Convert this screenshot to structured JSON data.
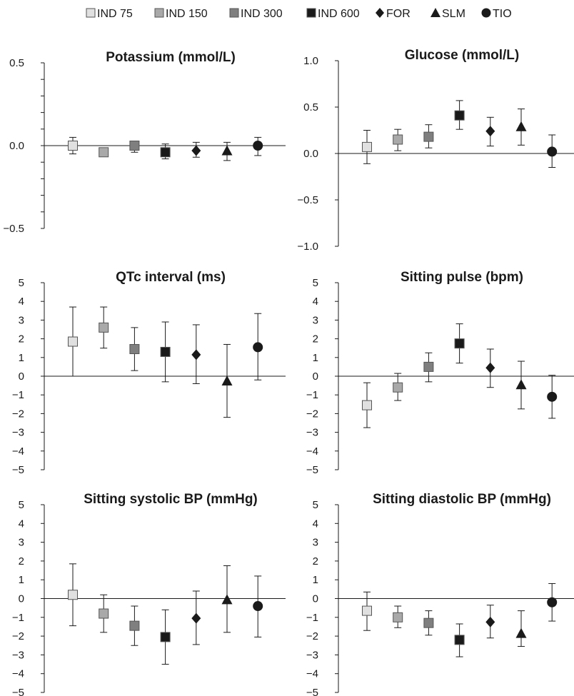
{
  "legend": [
    {
      "label": "IND 75",
      "marker": "square",
      "color": "#e0e0e0"
    },
    {
      "label": "IND 150",
      "marker": "square",
      "color": "#a9a9a9"
    },
    {
      "label": "IND 300",
      "marker": "square",
      "color": "#7f7f7f"
    },
    {
      "label": "IND 600",
      "marker": "square",
      "color": "#1a1a1a"
    },
    {
      "label": "FOR",
      "marker": "diamond",
      "color": "#1a1a1a"
    },
    {
      "label": "SLM",
      "marker": "triangle",
      "color": "#1a1a1a"
    },
    {
      "label": "TIO",
      "marker": "circle",
      "color": "#1a1a1a"
    }
  ],
  "chart_data": [
    {
      "type": "scatter",
      "title": "Potassium (mmol/L)",
      "ylim": [
        -0.5,
        0.5
      ],
      "yticks": [
        -0.5,
        0.0,
        0.5
      ],
      "ytick_labels": [
        "−0.5",
        "0.0",
        "0.5"
      ],
      "minor_step": 0.1,
      "series": [
        {
          "name": "IND 75",
          "value": 0.0,
          "ci": [
            -0.05,
            0.05
          ]
        },
        {
          "name": "IND 150",
          "value": -0.04,
          "ci": [
            -0.06,
            -0.02
          ]
        },
        {
          "name": "IND 300",
          "value": 0.0,
          "ci": [
            -0.04,
            0.02
          ]
        },
        {
          "name": "IND 600",
          "value": -0.04,
          "ci": [
            -0.08,
            0.01
          ]
        },
        {
          "name": "FOR",
          "value": -0.03,
          "ci": [
            -0.07,
            0.02
          ]
        },
        {
          "name": "SLM",
          "value": -0.03,
          "ci": [
            -0.09,
            0.02
          ]
        },
        {
          "name": "TIO",
          "value": 0.0,
          "ci": [
            -0.06,
            0.05
          ]
        }
      ]
    },
    {
      "type": "scatter",
      "title": "Glucose (mmol/L)",
      "ylim": [
        -1.0,
        1.0
      ],
      "yticks": [
        -1.0,
        -0.5,
        0.0,
        0.5,
        1.0
      ],
      "ytick_labels": [
        "−1.0",
        "−0.5",
        "0.0",
        "0.5",
        "1.0"
      ],
      "minor_step": 0.5,
      "series": [
        {
          "name": "IND 75",
          "value": 0.07,
          "ci": [
            -0.11,
            0.25
          ]
        },
        {
          "name": "IND 150",
          "value": 0.15,
          "ci": [
            0.03,
            0.26
          ]
        },
        {
          "name": "IND 300",
          "value": 0.18,
          "ci": [
            0.06,
            0.31
          ]
        },
        {
          "name": "IND 600",
          "value": 0.41,
          "ci": [
            0.26,
            0.57
          ]
        },
        {
          "name": "FOR",
          "value": 0.24,
          "ci": [
            0.08,
            0.39
          ]
        },
        {
          "name": "SLM",
          "value": 0.29,
          "ci": [
            0.09,
            0.48
          ]
        },
        {
          "name": "TIO",
          "value": 0.02,
          "ci": [
            -0.15,
            0.2
          ]
        }
      ]
    },
    {
      "type": "scatter",
      "title": "QTc interval (ms)",
      "ylim": [
        -5,
        5
      ],
      "yticks": [
        -5,
        -4,
        -3,
        -2,
        -1,
        0,
        1,
        2,
        3,
        4,
        5
      ],
      "ytick_labels": [
        "−5",
        "−4",
        "−3",
        "−2",
        "−1",
        "0",
        "1",
        "2",
        "3",
        "4",
        "5"
      ],
      "minor_step": 1,
      "series": [
        {
          "name": "IND 75",
          "value": 1.85,
          "ci": [
            0.0,
            3.7
          ]
        },
        {
          "name": "IND 150",
          "value": 2.6,
          "ci": [
            1.5,
            3.7
          ]
        },
        {
          "name": "IND 300",
          "value": 1.45,
          "ci": [
            0.3,
            2.6
          ]
        },
        {
          "name": "IND 600",
          "value": 1.3,
          "ci": [
            -0.3,
            2.9
          ]
        },
        {
          "name": "FOR",
          "value": 1.15,
          "ci": [
            -0.4,
            2.75
          ]
        },
        {
          "name": "SLM",
          "value": -0.25,
          "ci": [
            -2.2,
            1.7
          ]
        },
        {
          "name": "TIO",
          "value": 1.55,
          "ci": [
            -0.2,
            3.35
          ]
        }
      ]
    },
    {
      "type": "scatter",
      "title": "Sitting pulse (bpm)",
      "ylim": [
        -5,
        5
      ],
      "yticks": [
        -5,
        -4,
        -3,
        -2,
        -1,
        0,
        1,
        2,
        3,
        4,
        5
      ],
      "ytick_labels": [
        "−5",
        "−4",
        "−3",
        "−2",
        "−1",
        "0",
        "1",
        "2",
        "3",
        "4",
        "5"
      ],
      "minor_step": 1,
      "series": [
        {
          "name": "IND 75",
          "value": -1.55,
          "ci": [
            -2.75,
            -0.35
          ]
        },
        {
          "name": "IND 150",
          "value": -0.6,
          "ci": [
            -1.3,
            0.15
          ]
        },
        {
          "name": "IND 300",
          "value": 0.5,
          "ci": [
            -0.3,
            1.25
          ]
        },
        {
          "name": "IND 600",
          "value": 1.75,
          "ci": [
            0.7,
            2.8
          ]
        },
        {
          "name": "FOR",
          "value": 0.45,
          "ci": [
            -0.6,
            1.45
          ]
        },
        {
          "name": "SLM",
          "value": -0.45,
          "ci": [
            -1.75,
            0.8
          ]
        },
        {
          "name": "TIO",
          "value": -1.1,
          "ci": [
            -2.25,
            0.05
          ]
        }
      ]
    },
    {
      "type": "scatter",
      "title": "Sitting systolic BP (mmHg)",
      "ylim": [
        -5,
        5
      ],
      "yticks": [
        -5,
        -4,
        -3,
        -2,
        -1,
        0,
        1,
        2,
        3,
        4,
        5
      ],
      "ytick_labels": [
        "−5",
        "−4",
        "−3",
        "−2",
        "−1",
        "0",
        "1",
        "2",
        "3",
        "4",
        "5"
      ],
      "minor_step": 1,
      "series": [
        {
          "name": "IND 75",
          "value": 0.2,
          "ci": [
            -1.45,
            1.85
          ]
        },
        {
          "name": "IND 150",
          "value": -0.8,
          "ci": [
            -1.8,
            0.2
          ]
        },
        {
          "name": "IND 300",
          "value": -1.45,
          "ci": [
            -2.5,
            -0.4
          ]
        },
        {
          "name": "IND 600",
          "value": -2.05,
          "ci": [
            -3.5,
            -0.6
          ]
        },
        {
          "name": "FOR",
          "value": -1.05,
          "ci": [
            -2.45,
            0.4
          ]
        },
        {
          "name": "SLM",
          "value": -0.05,
          "ci": [
            -1.8,
            1.75
          ]
        },
        {
          "name": "TIO",
          "value": -0.4,
          "ci": [
            -2.05,
            1.2
          ]
        }
      ]
    },
    {
      "type": "scatter",
      "title": "Sitting diastolic BP (mmHg)",
      "ylim": [
        -5,
        5
      ],
      "yticks": [
        -5,
        -4,
        -3,
        -2,
        -1,
        0,
        1,
        2,
        3,
        4,
        5
      ],
      "ytick_labels": [
        "−5",
        "−4",
        "−3",
        "−2",
        "−1",
        "0",
        "1",
        "2",
        "3",
        "4",
        "5"
      ],
      "minor_step": 1,
      "series": [
        {
          "name": "IND 75",
          "value": -0.65,
          "ci": [
            -1.7,
            0.35
          ]
        },
        {
          "name": "IND 150",
          "value": -1.0,
          "ci": [
            -1.55,
            -0.4
          ]
        },
        {
          "name": "IND 300",
          "value": -1.3,
          "ci": [
            -1.95,
            -0.65
          ]
        },
        {
          "name": "IND 600",
          "value": -2.2,
          "ci": [
            -3.1,
            -1.35
          ]
        },
        {
          "name": "FOR",
          "value": -1.25,
          "ci": [
            -2.1,
            -0.35
          ]
        },
        {
          "name": "SLM",
          "value": -1.85,
          "ci": [
            -2.55,
            -0.65
          ]
        },
        {
          "name": "TIO",
          "value": -0.2,
          "ci": [
            -1.2,
            0.8
          ]
        }
      ]
    }
  ]
}
